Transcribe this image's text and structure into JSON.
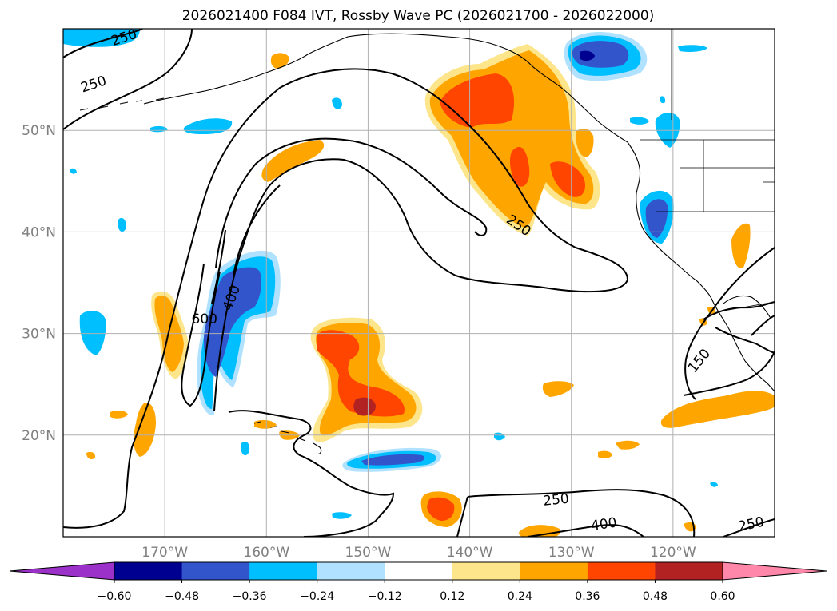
{
  "title": "2026021400 F084 IVT, Rossby Wave PC (2026021700 - 2026022000)",
  "map": {
    "projection": "PlateCarree",
    "lon_range": [
      -180,
      -110
    ],
    "lat_range": [
      10,
      60
    ],
    "lon_ticks": [
      {
        "lon": -170,
        "label": "170°W"
      },
      {
        "lon": -160,
        "label": "160°W"
      },
      {
        "lon": -150,
        "label": "150°W"
      },
      {
        "lon": -140,
        "label": "140°W"
      },
      {
        "lon": -130,
        "label": "130°W"
      },
      {
        "lon": -120,
        "label": "120°W"
      }
    ],
    "lat_ticks": [
      {
        "lat": 20,
        "label": "20°N"
      },
      {
        "lat": 30,
        "label": "30°N"
      },
      {
        "lat": 40,
        "label": "40°N"
      },
      {
        "lat": 50,
        "label": "50°N"
      }
    ],
    "contour_labels": [
      {
        "text": "250",
        "lon": -174,
        "lat": 59.1,
        "rot": -18
      },
      {
        "text": "250",
        "lon": -177,
        "lat": 54.5,
        "rot": -18
      },
      {
        "text": "600",
        "lon": -166.1,
        "lat": 31.4,
        "rot": 0
      },
      {
        "text": "400",
        "lon": -163.4,
        "lat": 33.5,
        "rot": -70
      },
      {
        "text": "250",
        "lon": -135.2,
        "lat": 40.6,
        "rot": 35
      },
      {
        "text": "250",
        "lon": -131.5,
        "lat": 13.6,
        "rot": -6
      },
      {
        "text": "400",
        "lon": -126.8,
        "lat": 11.2,
        "rot": -8
      },
      {
        "text": "150",
        "lon": -117.4,
        "lat": 27.3,
        "rot": -50
      },
      {
        "text": "250",
        "lon": -112.3,
        "lat": 11.2,
        "rot": -12
      }
    ]
  },
  "colorbar": {
    "boundaries": [
      -0.6,
      -0.48,
      -0.36,
      -0.24,
      -0.12,
      0.12,
      0.24,
      0.36,
      0.48,
      0.6
    ],
    "tick_labels": [
      "−0.60",
      "−0.48",
      "−0.36",
      "−0.24",
      "−0.12",
      "0.12",
      "0.24",
      "0.36",
      "0.48",
      "0.60"
    ],
    "colors": [
      "#9b31c9",
      "#000090",
      "#3355cc",
      "#00bfff",
      "#b0e2ff",
      "#ffffff",
      "#fde58c",
      "#ffa500",
      "#ff4500",
      "#b22222",
      "#ff88aa"
    ],
    "extend": "both"
  },
  "colors": {
    "pos1": "#fde58c",
    "pos2": "#ffa500",
    "pos3": "#ff4500",
    "pos4": "#b22222",
    "neg1": "#b0e2ff",
    "neg2": "#00bfff",
    "neg3": "#3355cc",
    "neg4": "#000090"
  }
}
